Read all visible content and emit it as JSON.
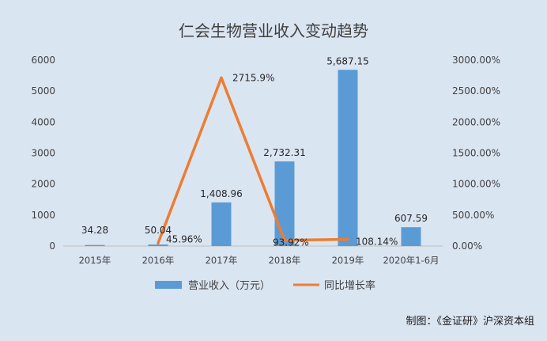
{
  "chart_data": {
    "type": "bar",
    "title": "仁会生物营业收入变动趋势",
    "categories": [
      "2015年",
      "2016年",
      "2017年",
      "2018年",
      "2019年",
      "2020年1-6月"
    ],
    "series": [
      {
        "name": "营业收入（万元）",
        "type": "bar",
        "axis": "left",
        "color": "#5b9bd5",
        "values": [
          34.28,
          50.04,
          1408.96,
          2732.31,
          5687.15,
          607.59
        ],
        "labels": [
          "34.28",
          "50.04",
          "1,408.96",
          "2,732.31",
          "5,687.15",
          "607.59"
        ]
      },
      {
        "name": "同比增长率",
        "type": "line",
        "axis": "right",
        "color": "#ed7d31",
        "values": [
          null,
          45.96,
          2715.9,
          93.92,
          108.14,
          null
        ],
        "labels": [
          "",
          "45.96%",
          "2715.9%",
          "93.92%",
          "108.14%",
          ""
        ]
      }
    ],
    "y_left": {
      "min": 0,
      "max": 6000,
      "ticks": [
        "0",
        "1000",
        "2000",
        "3000",
        "4000",
        "5000",
        "6000"
      ]
    },
    "y_right": {
      "min": 0,
      "max": 3000,
      "ticks": [
        "0.00%",
        "500.00%",
        "1000.00%",
        "1500.00%",
        "2000.00%",
        "2500.00%",
        "3000.00%"
      ]
    },
    "grid": false,
    "legend_position": "bottom"
  },
  "credit": "制图：《金证研》沪深资本组"
}
